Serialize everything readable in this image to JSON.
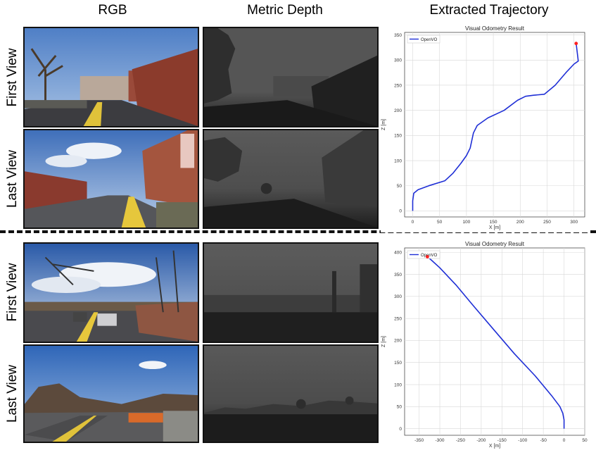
{
  "columns": {
    "rgb": "RGB",
    "depth": "Metric Depth",
    "trajectory": "Extracted Trajectory"
  },
  "rows": {
    "first": "First View",
    "last": "Last View"
  },
  "chart_data": [
    {
      "type": "line",
      "title": "Visual Odometry Result",
      "xlabel": "X [m]",
      "ylabel": "Z [m]",
      "xlim": [
        -15,
        320
      ],
      "ylim": [
        -12,
        355
      ],
      "xticks": [
        0,
        50,
        100,
        150,
        200,
        250,
        300
      ],
      "yticks": [
        0,
        50,
        100,
        150,
        200,
        250,
        300,
        350
      ],
      "grid": true,
      "legend": "top-left",
      "series": [
        {
          "name": "OpenVO",
          "color": "#1f2fd6",
          "x": [
            0,
            0,
            2,
            10,
            30,
            60,
            75,
            90,
            100,
            107,
            110,
            113,
            120,
            140,
            170,
            195,
            210,
            225,
            245,
            265,
            285,
            300,
            308,
            304
          ],
          "y": [
            0,
            20,
            35,
            42,
            50,
            60,
            75,
            95,
            110,
            125,
            140,
            155,
            170,
            185,
            200,
            220,
            228,
            230,
            232,
            250,
            275,
            292,
            298,
            333
          ]
        }
      ],
      "end_marker": {
        "x": 304,
        "y": 333,
        "color": "#ff2020"
      }
    },
    {
      "type": "line",
      "title": "Visual Odometry Result",
      "xlabel": "X [m]",
      "ylabel": "Z [m]",
      "xlim": [
        -385,
        50
      ],
      "ylim": [
        -15,
        410
      ],
      "xticks": [
        -350,
        -300,
        -250,
        -200,
        -150,
        -100,
        -50,
        0,
        50
      ],
      "yticks": [
        0,
        50,
        100,
        150,
        200,
        250,
        300,
        350,
        400
      ],
      "grid": true,
      "legend": "top-left",
      "series": [
        {
          "name": "OpenVO",
          "color": "#1f2fd6",
          "x": [
            0,
            0,
            -3,
            -10,
            -30,
            -70,
            -120,
            -170,
            -220,
            -260,
            -300,
            -320,
            -330
          ],
          "y": [
            0,
            20,
            35,
            50,
            75,
            120,
            170,
            225,
            280,
            325,
            365,
            382,
            390
          ]
        }
      ],
      "end_marker": {
        "x": -330,
        "y": 390,
        "color": "#ff2020"
      }
    }
  ]
}
